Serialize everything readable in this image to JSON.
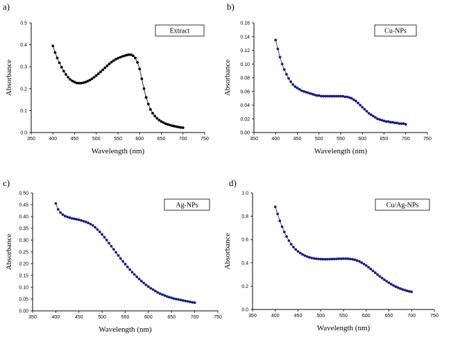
{
  "chart_data": [
    {
      "type": "line",
      "panel_tag": "a)",
      "legend": "Extract",
      "xlabel": "Wavelength  (nm)",
      "ylabel": "Absorbance",
      "xlim": [
        350,
        750
      ],
      "ylim": [
        0,
        0.5
      ],
      "xticks": [
        350,
        400,
        450,
        500,
        550,
        600,
        650,
        700,
        750
      ],
      "yticks": [
        0,
        0.1,
        0.2,
        0.3,
        0.4,
        0.5
      ],
      "ytick_labels": [
        "0.0",
        "0.1",
        "0.2",
        "0.3",
        "0.4",
        "0.5"
      ],
      "marker_color": "#000000",
      "legend_position": "top-right",
      "x": [
        400,
        405,
        410,
        415,
        420,
        425,
        430,
        435,
        440,
        445,
        450,
        455,
        460,
        465,
        470,
        475,
        480,
        485,
        490,
        495,
        500,
        505,
        510,
        515,
        520,
        525,
        530,
        535,
        540,
        545,
        550,
        555,
        560,
        565,
        570,
        575,
        580,
        585,
        590,
        595,
        600,
        605,
        610,
        615,
        620,
        625,
        630,
        635,
        640,
        645,
        650,
        655,
        660,
        665,
        670,
        675,
        680,
        685,
        690,
        695,
        700
      ],
      "y": [
        0.395,
        0.365,
        0.34,
        0.318,
        0.298,
        0.28,
        0.265,
        0.252,
        0.242,
        0.235,
        0.23,
        0.226,
        0.225,
        0.225,
        0.227,
        0.23,
        0.234,
        0.239,
        0.245,
        0.252,
        0.26,
        0.268,
        0.277,
        0.286,
        0.295,
        0.304,
        0.313,
        0.321,
        0.328,
        0.334,
        0.339,
        0.343,
        0.347,
        0.35,
        0.353,
        0.355,
        0.355,
        0.35,
        0.34,
        0.32,
        0.29,
        0.245,
        0.2,
        0.16,
        0.13,
        0.105,
        0.088,
        0.075,
        0.065,
        0.057,
        0.05,
        0.045,
        0.04,
        0.037,
        0.034,
        0.031,
        0.029,
        0.027,
        0.025,
        0.023,
        0.022
      ]
    },
    {
      "type": "line",
      "panel_tag": "b)",
      "legend": "Cu-NPs",
      "xlabel": "Wavelength  (nm)",
      "ylabel": "Absorbance",
      "xlim": [
        350,
        750
      ],
      "ylim": [
        0,
        0.16
      ],
      "xticks": [
        350,
        400,
        450,
        500,
        550,
        600,
        650,
        700,
        750
      ],
      "yticks": [
        0,
        0.02,
        0.04,
        0.06,
        0.08,
        0.1,
        0.12,
        0.14,
        0.16
      ],
      "ytick_labels": [
        "0.00",
        "0.02",
        "0.04",
        "0.06",
        "0.08",
        "0.10",
        "0.12",
        "0.14",
        "0.16"
      ],
      "marker_color": "#1c1c8c",
      "legend_position": "top-right",
      "x": [
        400,
        405,
        410,
        415,
        420,
        425,
        430,
        435,
        440,
        445,
        450,
        455,
        460,
        465,
        470,
        475,
        480,
        485,
        490,
        495,
        500,
        505,
        510,
        515,
        520,
        525,
        530,
        535,
        540,
        545,
        550,
        555,
        560,
        565,
        570,
        575,
        580,
        585,
        590,
        595,
        600,
        605,
        610,
        615,
        620,
        625,
        630,
        635,
        640,
        645,
        650,
        655,
        660,
        665,
        670,
        675,
        680,
        685,
        690,
        695,
        700
      ],
      "y": [
        0.135,
        0.122,
        0.11,
        0.1,
        0.092,
        0.085,
        0.079,
        0.074,
        0.07,
        0.067,
        0.065,
        0.063,
        0.061,
        0.06,
        0.059,
        0.058,
        0.057,
        0.056,
        0.055,
        0.054,
        0.054,
        0.053,
        0.053,
        0.053,
        0.053,
        0.053,
        0.053,
        0.053,
        0.053,
        0.053,
        0.053,
        0.053,
        0.052,
        0.052,
        0.051,
        0.05,
        0.048,
        0.046,
        0.043,
        0.04,
        0.037,
        0.034,
        0.031,
        0.028,
        0.026,
        0.024,
        0.022,
        0.02,
        0.019,
        0.018,
        0.017,
        0.016,
        0.016,
        0.015,
        0.015,
        0.014,
        0.014,
        0.013,
        0.013,
        0.013,
        0.012
      ]
    },
    {
      "type": "line",
      "panel_tag": "c)",
      "legend": "Ag-NPs",
      "xlabel": "Wavelength  (nm)",
      "ylabel": "Absorbance",
      "xlim": [
        350,
        750
      ],
      "ylim": [
        0,
        0.5
      ],
      "xticks": [
        350,
        400,
        450,
        500,
        550,
        600,
        650,
        700,
        750
      ],
      "yticks": [
        0,
        0.05,
        0.1,
        0.15,
        0.2,
        0.25,
        0.3,
        0.35,
        0.4,
        0.45,
        0.5
      ],
      "ytick_labels": [
        "0.00",
        "0.05",
        "0.10",
        "0.15",
        "0.20",
        "0.25",
        "0.30",
        "0.35",
        "0.40",
        "0.45",
        "0.50"
      ],
      "marker_color": "#1c1c8c",
      "legend_position": "top-right",
      "x": [
        400,
        405,
        410,
        415,
        420,
        425,
        430,
        435,
        440,
        445,
        450,
        455,
        460,
        465,
        470,
        475,
        480,
        485,
        490,
        495,
        500,
        505,
        510,
        515,
        520,
        525,
        530,
        535,
        540,
        545,
        550,
        555,
        560,
        565,
        570,
        575,
        580,
        585,
        590,
        595,
        600,
        605,
        610,
        615,
        620,
        625,
        630,
        635,
        640,
        645,
        650,
        655,
        660,
        665,
        670,
        675,
        680,
        685,
        690,
        695,
        700
      ],
      "y": [
        0.455,
        0.43,
        0.417,
        0.408,
        0.402,
        0.398,
        0.395,
        0.392,
        0.39,
        0.388,
        0.386,
        0.383,
        0.38,
        0.377,
        0.373,
        0.368,
        0.362,
        0.354,
        0.345,
        0.335,
        0.324,
        0.312,
        0.3,
        0.287,
        0.274,
        0.261,
        0.248,
        0.235,
        0.222,
        0.21,
        0.198,
        0.186,
        0.175,
        0.164,
        0.154,
        0.144,
        0.135,
        0.126,
        0.118,
        0.11,
        0.103,
        0.096,
        0.09,
        0.084,
        0.078,
        0.073,
        0.069,
        0.065,
        0.061,
        0.058,
        0.055,
        0.052,
        0.05,
        0.048,
        0.046,
        0.044,
        0.042,
        0.04,
        0.038,
        0.036,
        0.035
      ]
    },
    {
      "type": "line",
      "panel_tag": "d)",
      "legend": "Cu/Ag-NPs",
      "xlabel": "Wavelength  (nm)",
      "ylabel": "Absorbance",
      "xlim": [
        350,
        750
      ],
      "ylim": [
        0,
        1.0
      ],
      "xticks": [
        350,
        400,
        450,
        500,
        550,
        600,
        650,
        700,
        750
      ],
      "yticks": [
        0,
        0.2,
        0.4,
        0.6,
        0.8,
        1.0
      ],
      "ytick_labels": [
        "0.0",
        "0.2",
        "0.4",
        "0.6",
        "0.8",
        "1.0"
      ],
      "marker_color": "#1c1c8c",
      "legend_position": "top-right",
      "x": [
        400,
        405,
        410,
        415,
        420,
        425,
        430,
        435,
        440,
        445,
        450,
        455,
        460,
        465,
        470,
        475,
        480,
        485,
        490,
        495,
        500,
        505,
        510,
        515,
        520,
        525,
        530,
        535,
        540,
        545,
        550,
        555,
        560,
        565,
        570,
        575,
        580,
        585,
        590,
        595,
        600,
        605,
        610,
        615,
        620,
        625,
        630,
        635,
        640,
        645,
        650,
        655,
        660,
        665,
        670,
        675,
        680,
        685,
        690,
        695,
        700
      ],
      "y": [
        0.88,
        0.82,
        0.76,
        0.71,
        0.665,
        0.625,
        0.59,
        0.56,
        0.535,
        0.515,
        0.498,
        0.484,
        0.472,
        0.462,
        0.454,
        0.447,
        0.442,
        0.438,
        0.435,
        0.433,
        0.432,
        0.431,
        0.431,
        0.431,
        0.432,
        0.432,
        0.433,
        0.434,
        0.435,
        0.435,
        0.436,
        0.436,
        0.435,
        0.433,
        0.43,
        0.426,
        0.42,
        0.412,
        0.402,
        0.39,
        0.377,
        0.362,
        0.347,
        0.331,
        0.315,
        0.299,
        0.284,
        0.269,
        0.255,
        0.242,
        0.229,
        0.217,
        0.206,
        0.196,
        0.187,
        0.179,
        0.172,
        0.166,
        0.16,
        0.155,
        0.151
      ]
    }
  ]
}
